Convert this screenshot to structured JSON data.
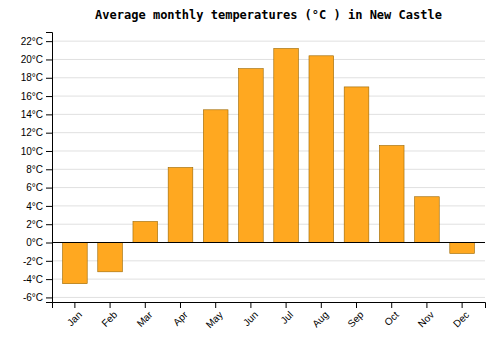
{
  "chart_data": {
    "type": "bar",
    "title": "Average monthly temperatures (°C ) in New Castle",
    "categories": [
      "Jan",
      "Feb",
      "Mar",
      "Apr",
      "May",
      "Jun",
      "Jul",
      "Aug",
      "Sep",
      "Oct",
      "Nov",
      "Dec"
    ],
    "values": [
      -4.5,
      -3.2,
      2.3,
      8.2,
      14.5,
      19.0,
      21.2,
      20.4,
      17.0,
      10.6,
      5.0,
      -1.2
    ],
    "color": "#FFA820",
    "ylim": [
      -6.5,
      23
    ],
    "yticks": [
      {
        "value": -6,
        "label": "-6°C"
      },
      {
        "value": -4,
        "label": "-4°C"
      },
      {
        "value": -2,
        "label": "-2°C"
      },
      {
        "value": 0,
        "label": "0°C"
      },
      {
        "value": 2,
        "label": "2°C"
      },
      {
        "value": 4,
        "label": "4°C"
      },
      {
        "value": 6,
        "label": "6°C"
      },
      {
        "value": 8,
        "label": "8°C"
      },
      {
        "value": 10,
        "label": "10°C"
      },
      {
        "value": 12,
        "label": "12°C"
      },
      {
        "value": 14,
        "label": "14°C"
      },
      {
        "value": 16,
        "label": "16°C"
      },
      {
        "value": 18,
        "label": "18°C"
      },
      {
        "value": 20,
        "label": "20°C"
      },
      {
        "value": 22,
        "label": "22°C"
      }
    ],
    "grid": true
  }
}
